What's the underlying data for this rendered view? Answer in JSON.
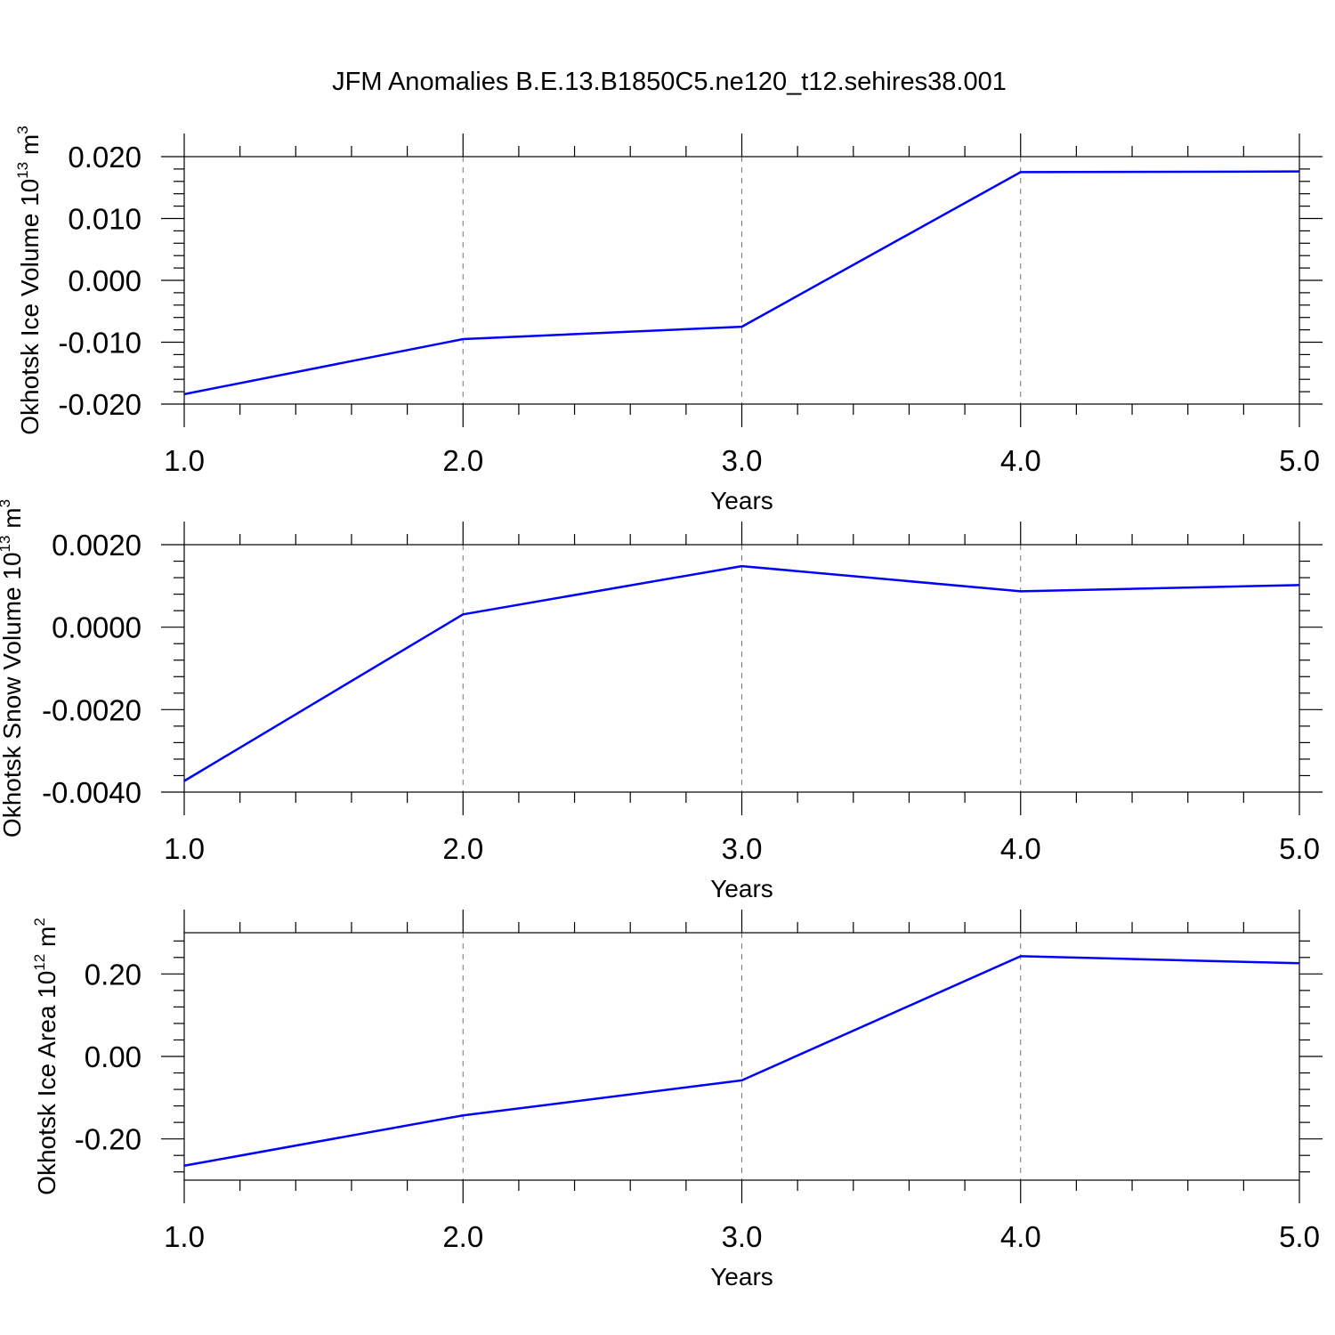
{
  "title": "JFM Anomalies B.E.13.B1850C5.ne120_t12.sehires38.001",
  "colors": {
    "series": "#0000ff",
    "grid": "#777777",
    "axes": "#000000"
  },
  "chart_data": [
    {
      "type": "line",
      "xlabel": "Years",
      "ylabel": {
        "text": "Okhotsk Ice Volume 10",
        "sup": "13",
        "unit": " m",
        "unit_sup": "3"
      },
      "x": [
        1.0,
        2.0,
        3.0,
        4.0,
        5.0
      ],
      "xlim": [
        1.0,
        5.0
      ],
      "xticks": [
        "1.0",
        "2.0",
        "3.0",
        "4.0",
        "5.0"
      ],
      "ylim": [
        -0.02,
        0.02
      ],
      "yticks": [
        -0.02,
        -0.01,
        0.0,
        0.01,
        0.02
      ],
      "ytick_labels": [
        "-0.020",
        "-0.010",
        "0.000",
        "0.010",
        "0.020"
      ],
      "series": [
        {
          "values": [
            -0.0184,
            -0.0095,
            -0.0075,
            0.0175,
            0.0176
          ]
        }
      ],
      "grid": "vertical dashed at major x ticks"
    },
    {
      "type": "line",
      "xlabel": "Years",
      "ylabel": {
        "text": "Okhotsk Snow Volume 10",
        "sup": "13",
        "unit": " m",
        "unit_sup": "3"
      },
      "x": [
        1.0,
        2.0,
        3.0,
        4.0,
        5.0
      ],
      "xlim": [
        1.0,
        5.0
      ],
      "xticks": [
        "1.0",
        "2.0",
        "3.0",
        "4.0",
        "5.0"
      ],
      "ylim": [
        -0.004,
        0.002
      ],
      "yticks": [
        -0.004,
        -0.002,
        0.0,
        0.002
      ],
      "ytick_labels": [
        "-0.0040",
        "-0.0020",
        "0.0000",
        "0.0020"
      ],
      "series": [
        {
          "values": [
            -0.00373,
            0.00031,
            0.00148,
            0.00087,
            0.00102
          ]
        }
      ],
      "grid": "vertical dashed at major x ticks"
    },
    {
      "type": "line",
      "xlabel": "Years",
      "ylabel": {
        "text": "Okhotsk Ice Area 10",
        "sup": "12",
        "unit": " m",
        "unit_sup": "2"
      },
      "x": [
        1.0,
        2.0,
        3.0,
        4.0,
        5.0
      ],
      "xlim": [
        1.0,
        5.0
      ],
      "xticks": [
        "1.0",
        "2.0",
        "3.0",
        "4.0",
        "5.0"
      ],
      "ylim": [
        -0.3,
        0.3
      ],
      "yticks": [
        -0.2,
        0.0,
        0.2
      ],
      "ytick_labels": [
        "-0.20",
        "0.00",
        "0.20"
      ],
      "series": [
        {
          "values": [
            -0.265,
            -0.143,
            -0.058,
            0.243,
            0.226
          ]
        }
      ],
      "grid": "vertical dashed at major x ticks"
    }
  ]
}
